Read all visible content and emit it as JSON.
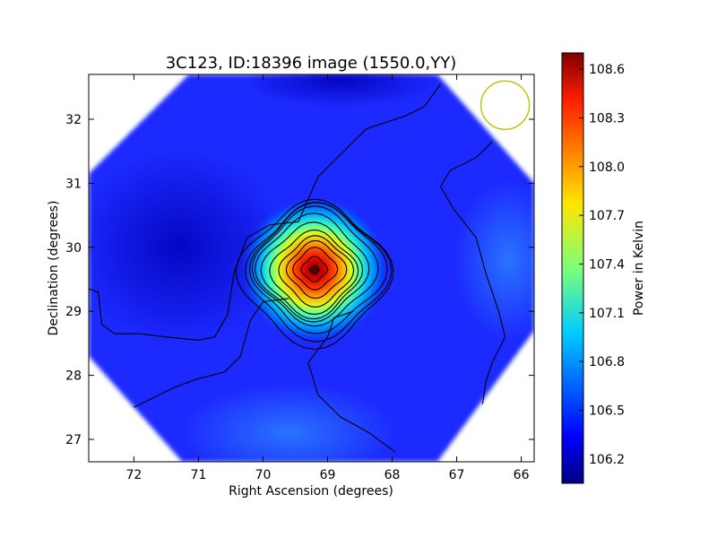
{
  "chart_data": {
    "type": "heatmap",
    "title": "3C123, ID:18396 image (1550.0,YY)",
    "xlabel": "Right Ascension (degrees)",
    "ylabel": "Declination (degrees)",
    "xlim": [
      72.7,
      65.8
    ],
    "ylim": [
      26.65,
      32.7
    ],
    "x_ticks": [
      72,
      71,
      70,
      69,
      68,
      67,
      66
    ],
    "x_tick_labels": [
      "72",
      "71",
      "70",
      "69",
      "68",
      "67",
      "66"
    ],
    "y_ticks": [
      27,
      28,
      29,
      30,
      31,
      32
    ],
    "y_tick_labels": [
      "27",
      "28",
      "29",
      "30",
      "31",
      "32"
    ],
    "colorbar": {
      "label": "Power in Kelvin",
      "range": [
        106.05,
        108.7
      ],
      "ticks": [
        106.2,
        106.5,
        106.8,
        107.1,
        107.4,
        107.7,
        108.0,
        108.3,
        108.6
      ],
      "tick_labels": [
        "106.2",
        "106.5",
        "106.8",
        "107.1",
        "107.4",
        "107.7",
        "108.0",
        "108.3",
        "108.6"
      ],
      "colormap": "jet"
    },
    "footprint_corners": [
      [
        71.15,
        32.7
      ],
      [
        67.3,
        32.7
      ],
      [
        65.8,
        31.0
      ],
      [
        65.8,
        28.7
      ],
      [
        67.3,
        26.65
      ],
      [
        71.25,
        26.65
      ],
      [
        72.7,
        28.3
      ],
      [
        72.7,
        31.15
      ]
    ],
    "peak": {
      "ra": 69.2,
      "dec": 29.65,
      "value": 108.65
    },
    "background_level": 106.35,
    "contour_levels": [
      106.5,
      106.7,
      106.85,
      107.05,
      107.25,
      107.45,
      107.65,
      107.85,
      108.05,
      108.25,
      108.45,
      108.6
    ],
    "beam": {
      "ra": 66.25,
      "dec": 32.22,
      "color": "#bfbf00"
    },
    "grid": false,
    "legend": "none"
  }
}
